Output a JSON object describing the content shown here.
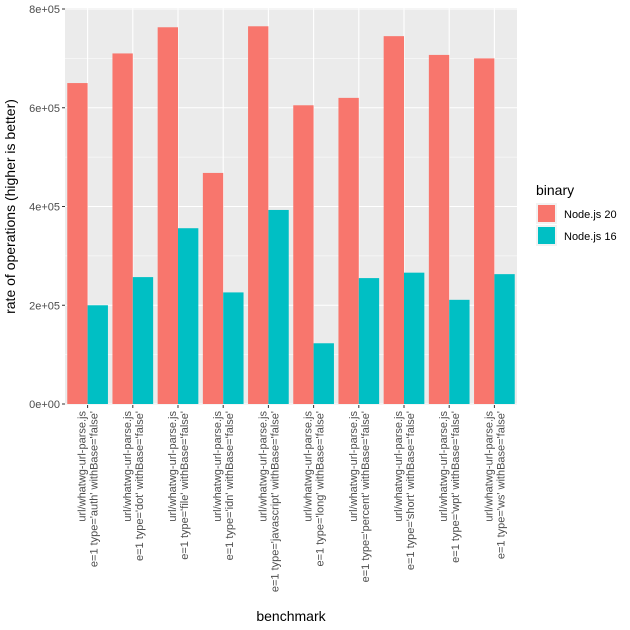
{
  "chart_data": {
    "type": "bar",
    "xlabel": "benchmark",
    "ylabel": "rate of operations (higher is better)",
    "ylim": [
      0,
      800000
    ],
    "y_ticks": [
      {
        "value": 0,
        "label": "0e+00"
      },
      {
        "value": 200000,
        "label": "2e+05"
      },
      {
        "value": 400000,
        "label": "4e+05"
      },
      {
        "value": 600000,
        "label": "6e+05"
      },
      {
        "value": 800000,
        "label": "8e+05"
      }
    ],
    "grid": true,
    "legend": {
      "title": "binary",
      "position": "right"
    },
    "categories": [
      {
        "line1": "url/whatwg-url-parse.js",
        "line2": "e=1 type='auth' withBase='false'"
      },
      {
        "line1": "url/whatwg-url-parse.js",
        "line2": "e=1 type='dot' withBase='false'"
      },
      {
        "line1": "url/whatwg-url-parse.js",
        "line2": "e=1 type='file' withBase='false'"
      },
      {
        "line1": "url/whatwg-url-parse.js",
        "line2": "e=1 type='idn' withBase='false'"
      },
      {
        "line1": "url/whatwg-url-parse.js",
        "line2": "e=1 type='javascript' withBase='false'"
      },
      {
        "line1": "url/whatwg-url-parse.js",
        "line2": "e=1 type='long' withBase='false'"
      },
      {
        "line1": "url/whatwg-url-parse.js",
        "line2": "e=1 type='percent' withBase='false'"
      },
      {
        "line1": "url/whatwg-url-parse.js",
        "line2": "e=1 type='short' withBase='false'"
      },
      {
        "line1": "url/whatwg-url-parse.js",
        "line2": "e=1 type='wpt' withBase='false'"
      },
      {
        "line1": "url/whatwg-url-parse.js",
        "line2": "e=1 type='ws' withBase='false'"
      }
    ],
    "series": [
      {
        "name": "Node.js 20",
        "color": "#F8766D",
        "values": [
          650000,
          710000,
          763000,
          468000,
          765000,
          605000,
          620000,
          745000,
          707000,
          700000
        ]
      },
      {
        "name": "Node.js 16",
        "color": "#00BFC4",
        "values": [
          200000,
          257000,
          356000,
          226000,
          393000,
          123000,
          255000,
          266000,
          211000,
          263000
        ]
      }
    ]
  }
}
